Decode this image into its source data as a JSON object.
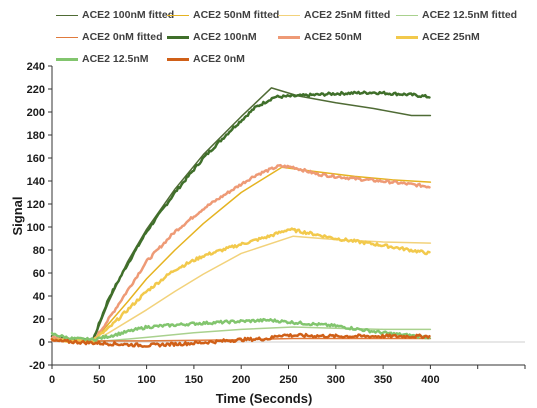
{
  "chart_data": {
    "type": "line",
    "title": "",
    "xlabel": "Time (Seconds)",
    "ylabel": "Signal",
    "xlim": [
      0,
      500
    ],
    "ylim": [
      -20,
      240
    ],
    "x_ticks": [
      0,
      50,
      100,
      150,
      200,
      250,
      300,
      350,
      400
    ],
    "y_ticks": [
      -20,
      0,
      20,
      40,
      60,
      80,
      100,
      120,
      140,
      160,
      180,
      200,
      220,
      240
    ],
    "grid": false,
    "legend_position": "top",
    "series": [
      {
        "name": "ACE2 100nM fitted",
        "color": "#4f6b35",
        "width": 1.5,
        "points": [
          [
            0,
            2
          ],
          [
            43,
            0
          ],
          [
            60,
            35
          ],
          [
            80,
            70
          ],
          [
            100,
            98
          ],
          [
            130,
            133
          ],
          [
            160,
            163
          ],
          [
            200,
            196
          ],
          [
            232,
            221
          ],
          [
            260,
            214
          ],
          [
            300,
            208
          ],
          [
            340,
            203
          ],
          [
            380,
            197
          ],
          [
            400,
            197
          ]
        ]
      },
      {
        "name": "ACE2 50nM fitted",
        "color": "#e5b321",
        "width": 1.5,
        "points": [
          [
            0,
            2
          ],
          [
            43,
            0
          ],
          [
            60,
            16
          ],
          [
            80,
            35
          ],
          [
            100,
            55
          ],
          [
            130,
            80
          ],
          [
            160,
            103
          ],
          [
            200,
            130
          ],
          [
            243,
            152
          ],
          [
            280,
            148
          ],
          [
            320,
            144
          ],
          [
            360,
            141
          ],
          [
            400,
            139
          ]
        ]
      },
      {
        "name": "ACE2 25nM fitted",
        "color": "#f2d27b",
        "width": 1.5,
        "points": [
          [
            0,
            2
          ],
          [
            43,
            0
          ],
          [
            60,
            8
          ],
          [
            80,
            18
          ],
          [
            100,
            28
          ],
          [
            130,
            44
          ],
          [
            160,
            59
          ],
          [
            200,
            77
          ],
          [
            255,
            92
          ],
          [
            300,
            89
          ],
          [
            350,
            87
          ],
          [
            400,
            86
          ]
        ]
      },
      {
        "name": "ACE2 12.5nM fitted",
        "color": "#a9d18e",
        "width": 1.5,
        "points": [
          [
            0,
            2
          ],
          [
            43,
            0
          ],
          [
            100,
            4
          ],
          [
            150,
            8
          ],
          [
            200,
            11
          ],
          [
            255,
            13
          ],
          [
            300,
            12
          ],
          [
            350,
            11
          ],
          [
            400,
            11
          ]
        ]
      },
      {
        "name": "ACE2 0nM fitted",
        "color": "#e07a3c",
        "width": 1.5,
        "points": [
          [
            0,
            1
          ],
          [
            100,
            1
          ],
          [
            200,
            2
          ],
          [
            255,
            3
          ],
          [
            300,
            3
          ],
          [
            350,
            3
          ],
          [
            400,
            3
          ]
        ]
      },
      {
        "name": "ACE2 100nM",
        "color": "#3f6f2a",
        "width": 2.5,
        "noise": 1.2,
        "points": [
          [
            0,
            5
          ],
          [
            20,
            2
          ],
          [
            43,
            1
          ],
          [
            60,
            38
          ],
          [
            80,
            68
          ],
          [
            100,
            96
          ],
          [
            130,
            130
          ],
          [
            160,
            160
          ],
          [
            190,
            185
          ],
          [
            215,
            204
          ],
          [
            235,
            213
          ],
          [
            260,
            214
          ],
          [
            300,
            216
          ],
          [
            340,
            217
          ],
          [
            380,
            215
          ],
          [
            400,
            213
          ]
        ]
      },
      {
        "name": "ACE2 50nM",
        "color": "#ee9a76",
        "width": 2.5,
        "noise": 1.2,
        "points": [
          [
            0,
            4
          ],
          [
            20,
            1
          ],
          [
            43,
            0
          ],
          [
            60,
            20
          ],
          [
            80,
            45
          ],
          [
            100,
            70
          ],
          [
            130,
            96
          ],
          [
            160,
            116
          ],
          [
            190,
            132
          ],
          [
            215,
            145
          ],
          [
            240,
            153
          ],
          [
            255,
            152
          ],
          [
            280,
            146
          ],
          [
            320,
            142
          ],
          [
            360,
            139
          ],
          [
            400,
            135
          ]
        ]
      },
      {
        "name": "ACE2 25nM",
        "color": "#f2c94c",
        "width": 2.5,
        "noise": 1.3,
        "points": [
          [
            0,
            3
          ],
          [
            20,
            1
          ],
          [
            43,
            1
          ],
          [
            60,
            12
          ],
          [
            80,
            28
          ],
          [
            100,
            44
          ],
          [
            130,
            63
          ],
          [
            160,
            75
          ],
          [
            200,
            85
          ],
          [
            230,
            92
          ],
          [
            250,
            98
          ],
          [
            270,
            95
          ],
          [
            300,
            90
          ],
          [
            350,
            84
          ],
          [
            400,
            77
          ]
        ]
      },
      {
        "name": "ACE2 12.5nM",
        "color": "#82c56e",
        "width": 2.5,
        "noise": 1.2,
        "points": [
          [
            0,
            7
          ],
          [
            20,
            3
          ],
          [
            43,
            2
          ],
          [
            60,
            5
          ],
          [
            80,
            9
          ],
          [
            100,
            13
          ],
          [
            150,
            16
          ],
          [
            200,
            18
          ],
          [
            230,
            19
          ],
          [
            255,
            17
          ],
          [
            300,
            14
          ],
          [
            350,
            8
          ],
          [
            400,
            4
          ]
        ]
      },
      {
        "name": "ACE2 0nM",
        "color": "#d06018",
        "width": 2.5,
        "noise": 1.4,
        "points": [
          [
            0,
            1
          ],
          [
            50,
            -1
          ],
          [
            100,
            -3
          ],
          [
            150,
            -1
          ],
          [
            200,
            2
          ],
          [
            230,
            3
          ],
          [
            240,
            6
          ],
          [
            300,
            5
          ],
          [
            350,
            5
          ],
          [
            400,
            5
          ]
        ]
      }
    ]
  }
}
